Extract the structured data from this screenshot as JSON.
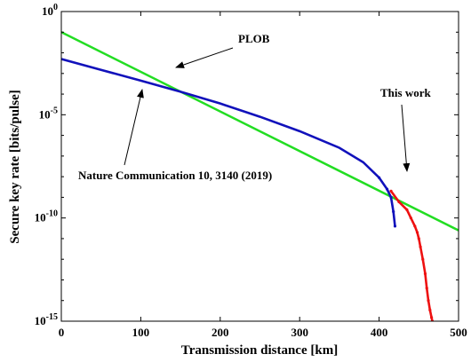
{
  "chart_data": {
    "type": "line",
    "xlabel": "Transmission distance [km]",
    "ylabel": "Secure key rate [bits/pulse]",
    "xlim": [
      0,
      500
    ],
    "ylim": [
      1e-15,
      1
    ],
    "yscale": "log",
    "grid": false,
    "x_ticks": [
      "0",
      "100",
      "200",
      "300",
      "400",
      "500"
    ],
    "y_ticks": [
      {
        "base": "10",
        "exp": "0"
      },
      {
        "base": "10",
        "exp": "-5"
      },
      {
        "base": "10",
        "exp": "-10"
      },
      {
        "base": "10",
        "exp": "-15"
      }
    ],
    "series": [
      {
        "name": "PLOB",
        "color": "#22dd22",
        "style": "line",
        "x": [
          0,
          500
        ],
        "y": [
          0.1,
          2.5e-11
        ]
      },
      {
        "name": "Nature Communication 10, 3140 (2019)",
        "color": "#1111bb",
        "style": "line+dots",
        "x": [
          0,
          50,
          100,
          150,
          200,
          250,
          300,
          350,
          380,
          400,
          410,
          415,
          418,
          420
        ],
        "y": [
          0.005,
          0.0015,
          0.00045,
          0.00013,
          3.5e-05,
          8e-06,
          1.6e-06,
          2.5e-07,
          5e-08,
          9e-09,
          2.5e-09,
          1e-09,
          2e-10,
          4e-11
        ]
      },
      {
        "name": "This work",
        "color": "#ee1111",
        "style": "line+dots",
        "x": [
          415,
          425,
          435,
          440,
          445,
          448,
          450,
          452,
          455,
          458,
          460,
          462,
          464,
          466,
          467
        ],
        "y": [
          2e-09,
          6e-10,
          2.5e-10,
          1e-10,
          4e-11,
          2e-11,
          1e-11,
          4e-12,
          1e-12,
          2e-13,
          4e-14,
          1e-14,
          3.5e-15,
          1.5e-15,
          1e-15
        ]
      }
    ],
    "annotations": [
      {
        "text": "PLOB",
        "points_to": {
          "x": 145,
          "y": 0.012
        }
      },
      {
        "text": "This work",
        "points_to": {
          "x": 438,
          "y": 1.2e-09
        }
      },
      {
        "text": "Nature Communication 10, 3140 (2019)",
        "points_to": {
          "x": 95,
          "y": 0.0005
        }
      }
    ]
  }
}
